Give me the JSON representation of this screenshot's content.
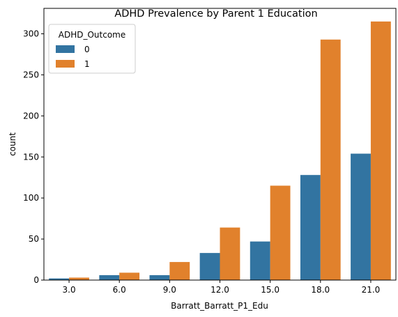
{
  "chart_data": {
    "type": "bar",
    "title": "ADHD Prevalence by Parent 1 Education",
    "xlabel": "Barratt_Barratt_P1_Edu",
    "ylabel": "count",
    "categories": [
      "3.0",
      "6.0",
      "9.0",
      "12.0",
      "15.0",
      "18.0",
      "21.0"
    ],
    "series": [
      {
        "name": "0",
        "values": [
          2,
          6,
          6,
          33,
          47,
          128,
          154
        ],
        "color": "#3274a1"
      },
      {
        "name": "1",
        "values": [
          3,
          9,
          22,
          64,
          115,
          293,
          315
        ],
        "color": "#e1812c"
      }
    ],
    "ylim": [
      0,
      331
    ],
    "yticks": [
      0,
      50,
      100,
      150,
      200,
      250,
      300
    ],
    "legend": {
      "title": "ADHD_Outcome",
      "placement": "top-left"
    },
    "grid": false
  }
}
